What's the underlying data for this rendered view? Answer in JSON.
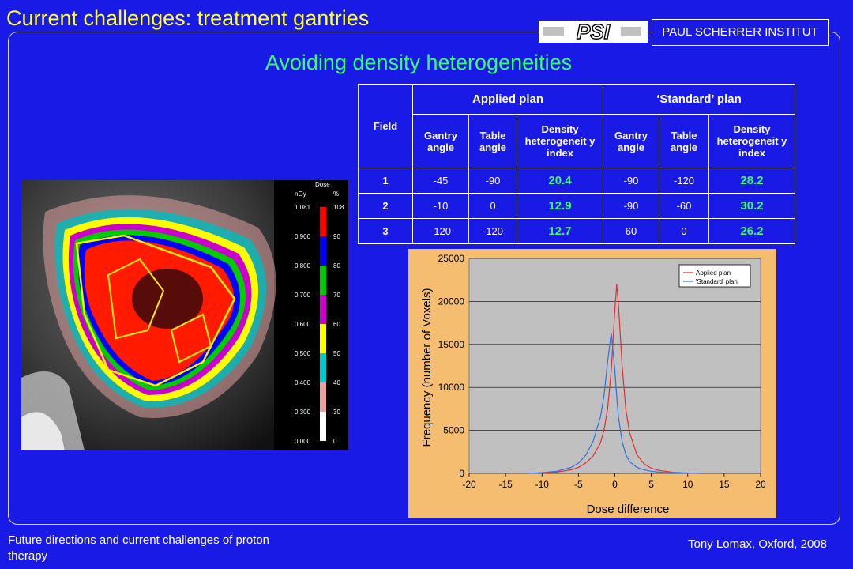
{
  "slide": {
    "title": "Current challenges: treatment gantries",
    "subtitle": "Avoiding density heterogeneities",
    "logo_text": "PSI",
    "institute": "PAUL SCHERRER INSTITUT",
    "footer_left": "Future directions and current challenges of proton therapy",
    "footer_right": "Tony Lomax, Oxford, 2008"
  },
  "table": {
    "field_header": "Field",
    "applied_header": "Applied plan",
    "standard_header": "‘Standard’ plan",
    "sub_headers": [
      "Gantry angle",
      "Table angle",
      "Density heterogeneit y index",
      "Gantry angle",
      "Table angle",
      "Density heterogeneit y index"
    ],
    "rows": [
      {
        "field": "1",
        "a_gantry": "-45",
        "a_table": "-90",
        "a_dhi": "20.4",
        "s_gantry": "-90",
        "s_table": "-120",
        "s_dhi": "28.2"
      },
      {
        "field": "2",
        "a_gantry": "-10",
        "a_table": "0",
        "a_dhi": "12.9",
        "s_gantry": "-90",
        "s_table": "-60",
        "s_dhi": "30.2"
      },
      {
        "field": "3",
        "a_gantry": "-120",
        "a_table": "-120",
        "a_dhi": "12.7",
        "s_gantry": "60",
        "s_table": "0",
        "s_dhi": "26.2"
      }
    ]
  },
  "dose_legend": {
    "title": "Dose",
    "unit_left": "nGy",
    "unit_right": "%",
    "levels": [
      {
        "gy": "1.081",
        "pct": "108",
        "color": "#ff0000"
      },
      {
        "gy": "0.900",
        "pct": "90",
        "color": "#0000ff"
      },
      {
        "gy": "0.800",
        "pct": "80",
        "color": "#00cc00"
      },
      {
        "gy": "0.700",
        "pct": "70",
        "color": "#cc00cc"
      },
      {
        "gy": "0.600",
        "pct": "60",
        "color": "#ffff00"
      },
      {
        "gy": "0.500",
        "pct": "50",
        "color": "#00cccc"
      },
      {
        "gy": "0.400",
        "pct": "40",
        "color": "#e8a0a0"
      },
      {
        "gy": "0.300",
        "pct": "30",
        "color": "#ffffff"
      },
      {
        "gy": "0.000",
        "pct": "0",
        "color": ""
      }
    ]
  },
  "chart_data": {
    "type": "line",
    "title": "",
    "xlabel": "Dose difference",
    "ylabel": "Frequency (number of Voxels)",
    "xlim": [
      -20,
      20
    ],
    "ylim": [
      0,
      25000
    ],
    "xticks": [
      -20,
      -15,
      -10,
      -5,
      0,
      5,
      10,
      15,
      20
    ],
    "yticks": [
      0,
      5000,
      10000,
      15000,
      20000,
      25000
    ],
    "grid": true,
    "legend_position": "top-right",
    "x": [
      -12,
      -10,
      -8,
      -6,
      -5,
      -4,
      -3,
      -2,
      -1.5,
      -1,
      -0.5,
      0,
      0.25,
      0.5,
      1,
      1.5,
      2,
      3,
      4,
      5,
      6,
      8,
      10,
      12
    ],
    "series": [
      {
        "name": "Applied plan",
        "color": "#e03030",
        "values": [
          0,
          50,
          150,
          400,
          700,
          1200,
          2000,
          3500,
          5000,
          7500,
          12000,
          19000,
          22000,
          19500,
          12500,
          7500,
          4800,
          2200,
          1100,
          600,
          350,
          120,
          40,
          0
        ]
      },
      {
        "name": "'Standard' plan",
        "color": "#3070e0",
        "values": [
          0,
          80,
          250,
          700,
          1200,
          2100,
          3700,
          6500,
          9000,
          13000,
          16300,
          12000,
          9000,
          6500,
          3700,
          2200,
          1400,
          700,
          400,
          250,
          150,
          60,
          20,
          0
        ]
      }
    ]
  }
}
